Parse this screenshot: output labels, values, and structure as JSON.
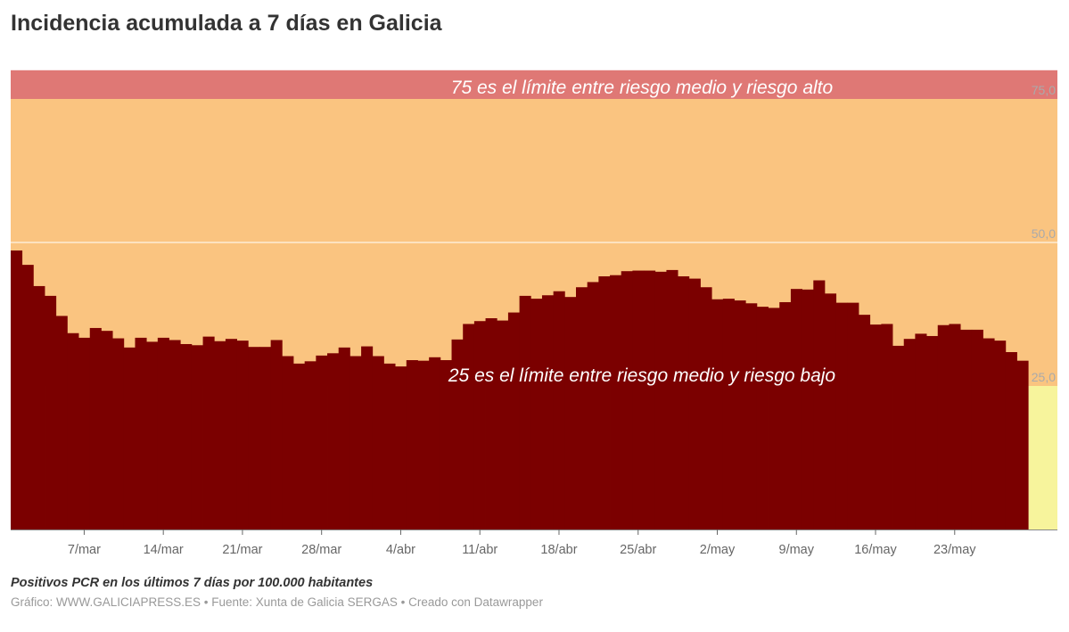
{
  "title": "Incidencia acumulada a 7 días en Galicia",
  "subtitle": "Positivos PCR en los últimos 7 días por 100.000 habitantes",
  "credits": "Gráfico: WWW.GALICIAPRESS.ES • Fuente: Xunta de Galicia SERGAS • Creado con Datawrapper",
  "chart_data": {
    "type": "bar",
    "title": "Incidencia acumulada a 7 días en Galicia",
    "ylabel": "Positivos PCR en los últimos 7 días por 100.000 habitantes",
    "ylim": [
      0,
      80
    ],
    "grid": true,
    "first_day": "1/mar",
    "colors": {
      "bars": "#7b0000",
      "band_high": "#df7875",
      "band_mid": "#fac480",
      "band_low": "#f7f49c",
      "grid": "#ffffff"
    },
    "bands": [
      {
        "from": 0,
        "to": 25,
        "color": "#f7f49c"
      },
      {
        "from": 25,
        "to": 75,
        "color": "#fac480"
      },
      {
        "from": 75,
        "to": 80,
        "color": "#df7875"
      }
    ],
    "y_ticks": [
      {
        "value": 25,
        "label": "25,0"
      },
      {
        "value": 50,
        "label": "50,0"
      },
      {
        "value": 75,
        "label": "75,0"
      }
    ],
    "x_ticks": [
      {
        "day": 6,
        "label": "7/mar"
      },
      {
        "day": 13,
        "label": "14/mar"
      },
      {
        "day": 20,
        "label": "21/mar"
      },
      {
        "day": 27,
        "label": "28/mar"
      },
      {
        "day": 34,
        "label": "4/abr"
      },
      {
        "day": 41,
        "label": "11/abr"
      },
      {
        "day": 48,
        "label": "18/abr"
      },
      {
        "day": 55,
        "label": "25/abr"
      },
      {
        "day": 62,
        "label": "2/may"
      },
      {
        "day": 69,
        "label": "9/may"
      },
      {
        "day": 76,
        "label": "16/may"
      },
      {
        "day": 83,
        "label": "23/may"
      }
    ],
    "annotations": [
      {
        "value": 75,
        "text": "75 es el límite entre riesgo medio y riesgo alto"
      },
      {
        "value": 25,
        "text": "25 es el límite entre riesgo medio y riesgo bajo"
      }
    ],
    "values": [
      48.6,
      46.1,
      42.4,
      40.7,
      37.2,
      34.2,
      33.4,
      35.1,
      34.6,
      33.3,
      31.7,
      33.4,
      32.7,
      33.4,
      33.0,
      32.3,
      32.1,
      33.6,
      32.8,
      33.2,
      32.9,
      31.8,
      31.8,
      33.0,
      30.2,
      28.9,
      29.3,
      30.3,
      30.7,
      31.7,
      30.2,
      31.9,
      30.2,
      28.9,
      28.4,
      29.5,
      29.4,
      30.0,
      29.5,
      33.1,
      35.8,
      36.3,
      36.8,
      36.4,
      37.8,
      40.7,
      40.2,
      40.8,
      41.5,
      40.5,
      42.2,
      43.1,
      44.1,
      44.3,
      45.0,
      45.1,
      45.1,
      44.9,
      45.2,
      44.1,
      43.7,
      42.2,
      40.1,
      40.2,
      39.9,
      39.4,
      38.8,
      38.6,
      39.6,
      41.9,
      41.8,
      43.4,
      41.1,
      39.5,
      39.5,
      37.4,
      35.7,
      35.8,
      32.0,
      33.2,
      34.1,
      33.7,
      35.6,
      35.8,
      34.8,
      34.8,
      33.3,
      32.9,
      30.9,
      29.4
    ]
  }
}
